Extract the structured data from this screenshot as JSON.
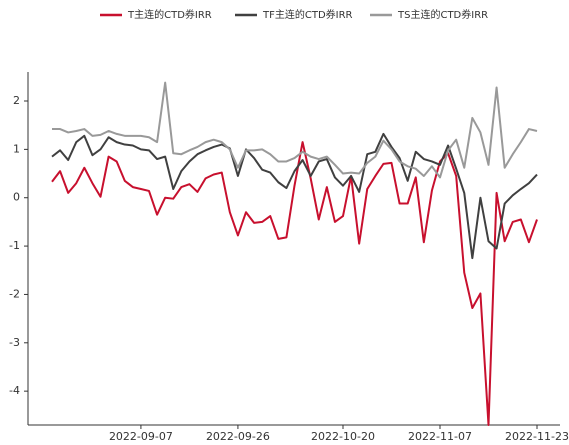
{
  "chart_data": {
    "type": "line",
    "categories": [
      null,
      null,
      null,
      null,
      null,
      null,
      null,
      null,
      null,
      null,
      null,
      "2022-09-07",
      null,
      null,
      null,
      null,
      null,
      null,
      null,
      null,
      null,
      null,
      null,
      "2022-09-26",
      null,
      null,
      null,
      null,
      null,
      null,
      null,
      null,
      null,
      null,
      null,
      null,
      "2022-10-20",
      null,
      null,
      null,
      null,
      null,
      null,
      null,
      null,
      null,
      null,
      null,
      "2022-11-07",
      null,
      null,
      null,
      null,
      null,
      null,
      null,
      null,
      null,
      null,
      null,
      "2022-11-23"
    ],
    "series": [
      {
        "name": "T主连的CTD券IRR",
        "color": "#c8102e",
        "values": [
          0.33,
          0.55,
          0.1,
          0.3,
          0.62,
          0.3,
          0.02,
          0.85,
          0.75,
          0.35,
          0.22,
          0.18,
          0.14,
          -0.35,
          0.0,
          -0.02,
          0.22,
          0.28,
          0.12,
          0.4,
          0.48,
          0.52,
          -0.3,
          -0.78,
          -0.3,
          -0.52,
          -0.5,
          -0.38,
          -0.85,
          -0.82,
          0.25,
          1.15,
          0.4,
          -0.45,
          0.22,
          -0.5,
          -0.38,
          0.45,
          -0.95,
          0.18,
          0.45,
          0.7,
          0.72,
          -0.12,
          -0.12,
          0.42,
          -0.92,
          0.15,
          0.75,
          0.92,
          0.45,
          -1.55,
          -2.28,
          -1.98,
          -4.7,
          0.1,
          -0.9,
          -0.5,
          -0.45,
          -0.92,
          -0.45
        ]
      },
      {
        "name": "TF主连的CTD券IRR",
        "color": "#404040",
        "values": [
          0.85,
          0.98,
          0.78,
          1.15,
          1.28,
          0.88,
          1.0,
          1.25,
          1.15,
          1.1,
          1.08,
          1.0,
          0.98,
          0.8,
          0.85,
          0.18,
          0.55,
          0.75,
          0.9,
          0.98,
          1.05,
          1.1,
          1.02,
          0.45,
          1.0,
          0.82,
          0.58,
          0.52,
          0.32,
          0.2,
          0.55,
          0.78,
          0.45,
          0.75,
          0.8,
          0.42,
          0.25,
          0.45,
          0.12,
          0.9,
          0.95,
          1.32,
          1.05,
          0.82,
          0.35,
          0.95,
          0.8,
          0.75,
          0.68,
          1.08,
          0.6,
          0.1,
          -1.25,
          0.0,
          -0.9,
          -1.05,
          -0.12,
          0.05,
          0.18,
          0.3,
          0.48
        ]
      },
      {
        "name": "TS主连的CTD券IRR",
        "color": "#999999",
        "values": [
          1.42,
          1.42,
          1.35,
          1.38,
          1.42,
          1.28,
          1.3,
          1.38,
          1.32,
          1.28,
          1.28,
          1.28,
          1.25,
          1.15,
          2.38,
          0.92,
          0.9,
          0.98,
          1.05,
          1.15,
          1.2,
          1.15,
          1.0,
          0.62,
          0.98,
          0.98,
          1.0,
          0.9,
          0.75,
          0.75,
          0.82,
          0.95,
          0.85,
          0.8,
          0.85,
          0.68,
          0.5,
          0.52,
          0.5,
          0.72,
          0.85,
          1.18,
          1.0,
          0.75,
          0.65,
          0.6,
          0.45,
          0.65,
          0.42,
          0.98,
          1.2,
          0.62,
          1.65,
          1.35,
          0.68,
          2.28,
          0.62,
          0.9,
          1.15,
          1.42,
          1.38
        ]
      }
    ],
    "ylim": [
      -4.7,
      2.6
    ],
    "yticks": [
      -4,
      -3,
      -2,
      -1,
      0,
      1,
      2
    ],
    "grid": false,
    "legend": "top"
  }
}
